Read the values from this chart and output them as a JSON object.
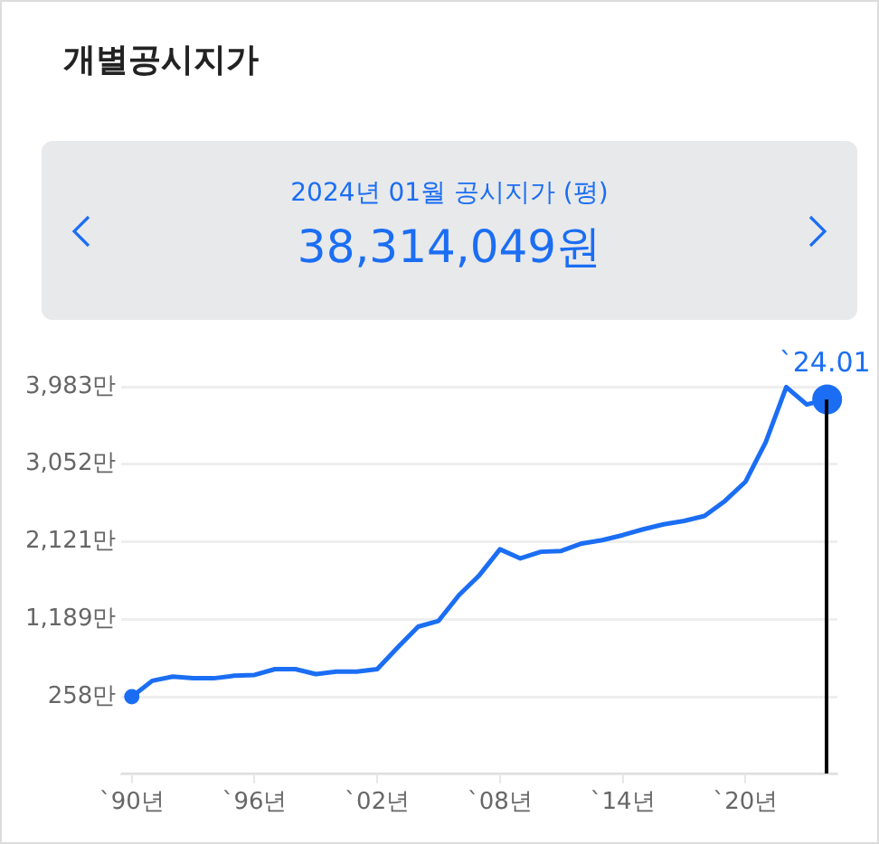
{
  "chart_data": {
    "type": "line",
    "title": "개별공시지가",
    "subtitle": "2024년 01월 공시지가 (평)",
    "annotations": [
      "38,314,049원",
      {
        "text": "`24.01",
        "y": 3831
      }
    ],
    "categories": [
      "`90년",
      null,
      null,
      null,
      null,
      null,
      "`96년",
      null,
      null,
      null,
      null,
      null,
      "`02년",
      null,
      null,
      null,
      null,
      null,
      "`08년",
      null,
      null,
      null,
      null,
      null,
      "`14년",
      null,
      null,
      null,
      null,
      null,
      "`20년",
      null,
      null,
      null,
      null
    ],
    "series": [
      {
        "color": "#1b6ef3",
        "marker": "none",
        "values": [
          258,
          450,
          500,
          480,
          480,
          510,
          520,
          590,
          590,
          530,
          560,
          560,
          590,
          850,
          1100,
          1170,
          1480,
          1720,
          2030,
          1920,
          2000,
          2010,
          2100,
          2140,
          2200,
          2270,
          2330,
          2370,
          2430,
          2610,
          2840,
          3320,
          3980,
          3770,
          3831
        ]
      },
      {
        "type": "scatter",
        "color": "#1b6ef3",
        "marker": "circle",
        "values": [
          258,
          null,
          null,
          null,
          null,
          null,
          null,
          null,
          null,
          null,
          null,
          null,
          null,
          null,
          null,
          null,
          null,
          null,
          null,
          null,
          null,
          null,
          null,
          null,
          null,
          null,
          null,
          null,
          null,
          null,
          null,
          null,
          null,
          null,
          3831
        ]
      }
    ],
    "ylim": [
      -673,
      3983
    ],
    "yticks": [
      {
        "value": -673,
        "label": null
      },
      {
        "value": 258,
        "label": "258만"
      },
      {
        "value": 1189,
        "label": "1,189만"
      },
      {
        "value": 2121,
        "label": "2,121만"
      },
      {
        "value": 3052,
        "label": "3,052만"
      },
      {
        "value": 3983,
        "label": "3,983만"
      }
    ],
    "grid": "y",
    "line_style": "solid"
  }
}
